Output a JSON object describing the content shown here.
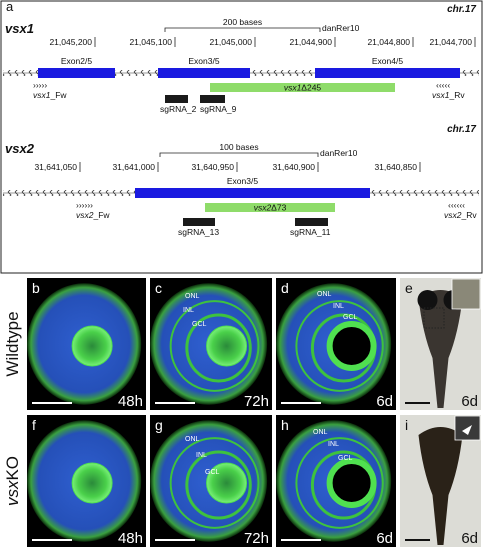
{
  "panel_a": {
    "label": "a",
    "vsx1": {
      "gene": "vsx1",
      "chrom": "chr.17",
      "scale": "200 bases",
      "assembly": "danRer10",
      "coords": [
        "21,045,200",
        "21,045,100",
        "21,045,000",
        "21,044,900",
        "21,044,800",
        "21,044,700"
      ],
      "exons": [
        "Exon2/5",
        "Exon3/5",
        "Exon4/5"
      ],
      "deletion": {
        "gene": "vsx1",
        "suffix": "Δ245"
      },
      "sgrnas": [
        "sgRNA_2",
        "sgRNA_9"
      ],
      "fw": {
        "arrows": "›››››",
        "gene": "vsx1",
        "suffix": "_Fw"
      },
      "rv": {
        "arrows": "‹‹‹‹‹",
        "gene": "vsx1",
        "suffix": "_Rv"
      }
    },
    "vsx2": {
      "gene": "vsx2",
      "chrom": "chr.17",
      "scale": "100 bases",
      "assembly": "danRer10",
      "coords": [
        "31,641,050",
        "31,641,000",
        "31,640,950",
        "31,640,900",
        "31,640,850"
      ],
      "exons": [
        "Exon3/5"
      ],
      "deletion": {
        "gene": "vsx2",
        "suffix": "Δ73"
      },
      "sgrnas": [
        "sgRNA_13",
        "sgRNA_11"
      ],
      "fw": {
        "arrows": "››››››",
        "gene": "vsx2",
        "suffix": "_Fw"
      },
      "rv": {
        "arrows": "‹‹‹‹‹‹",
        "gene": "vsx2",
        "suffix": "_Rv"
      }
    }
  },
  "rows": [
    {
      "text": "Wildtype"
    },
    {
      "italic": "vsx",
      "text": "KO"
    }
  ],
  "panels": [
    {
      "label": "b",
      "time": "48h"
    },
    {
      "label": "c",
      "time": "72h",
      "layers": [
        "ONL",
        "INL",
        "GCL"
      ]
    },
    {
      "label": "d",
      "time": "6d",
      "layers": [
        "ONL",
        "INL",
        "GCL"
      ]
    },
    {
      "label": "e",
      "time": "6d"
    },
    {
      "label": "f",
      "time": "48h"
    },
    {
      "label": "g",
      "time": "72h",
      "layers": [
        "ONL",
        "INL",
        "GCL"
      ]
    },
    {
      "label": "h",
      "time": "6d",
      "layers": [
        "ONL",
        "INL",
        "GCL"
      ]
    },
    {
      "label": "i",
      "time": "6d"
    }
  ]
}
